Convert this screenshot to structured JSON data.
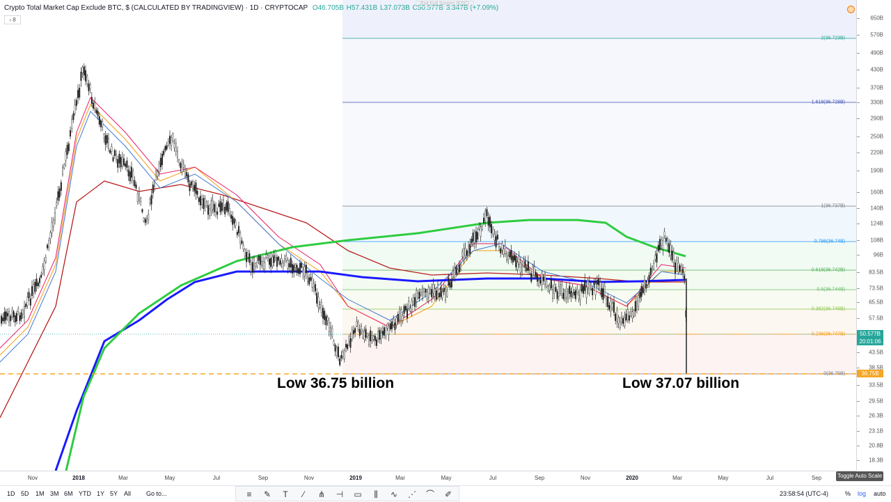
{
  "header": {
    "title": "Crypto Total Market Cap Exclude BTC, $ (CALCULATED BY TRADINGVIEW) · 1D · CRYPTOCAP",
    "open": "O46.705B",
    "high": "H57.431B",
    "low": "L37.073B",
    "close": "C50.577B",
    "change": "3.347B (+7.09%)",
    "collapse_label": "› 8",
    "exit_fullscreen": "Exit Full Screen (ESC)"
  },
  "annotations": {
    "low_left": "Low 36.75 billion",
    "low_right": "Low 37.07 billion"
  },
  "price_axis": {
    "ticks": [
      "650B",
      "570B",
      "490B",
      "430B",
      "370B",
      "330B",
      "290B",
      "250B",
      "220B",
      "190B",
      "160B",
      "140B",
      "124B",
      "108B",
      "96B",
      "83.5B",
      "73.5B",
      "65.5B",
      "57.5B",
      "43.5B",
      "38.5B",
      "33.5B",
      "29.5B",
      "26.3B",
      "23.1B",
      "20.8B",
      "18.3B"
    ],
    "last_price": "50.577B",
    "countdown": "20:01:06",
    "low_badge": "36.75B"
  },
  "time_axis": {
    "labels": [
      "Nov",
      "2018",
      "Mar",
      "May",
      "Jul",
      "Sep",
      "Nov",
      "2019",
      "Mar",
      "May",
      "Jul",
      "Sep",
      "Nov",
      "2020",
      "Mar",
      "May",
      "Jul",
      "Sep"
    ],
    "bold": [
      "2018",
      "2019",
      "2020"
    ]
  },
  "fib_levels": [
    {
      "label": "2(36.723B)",
      "color": "#26a69a"
    },
    {
      "label": "1.618(36.728B)",
      "color": "#3f51b5"
    },
    {
      "label": "1(36.737B)",
      "color": "#787b86"
    },
    {
      "label": "0.786(36.74B)",
      "color": "#2196f3"
    },
    {
      "label": "0.618(36.742B)",
      "color": "#4caf50"
    },
    {
      "label": "0.5(36.744B)",
      "color": "#66bb6a"
    },
    {
      "label": "0.382(36.745B)",
      "color": "#8bc34a"
    },
    {
      "label": "0.236(36.747B)",
      "color": "#ff9800"
    },
    {
      "label": "0(36.75B)",
      "color": "#787b86"
    }
  ],
  "bottom_bar": {
    "ranges": [
      "1D",
      "5D",
      "1M",
      "3M",
      "6M",
      "YTD",
      "1Y",
      "5Y",
      "All"
    ],
    "goto": "Go to...",
    "clock": "23:58:54 (UTC-4)",
    "percent": "%",
    "log": "log",
    "auto": "auto",
    "toggle_tooltip": "Toggle Auto Scale"
  },
  "tools": [
    "horizontal-lines-icon",
    "pencil-icon",
    "text-icon",
    "trendline-icon",
    "fork-icon",
    "horizontal-ray-icon",
    "rectangle-icon",
    "bars-icon",
    "wave-icon",
    "fan-icon",
    "curve-icon",
    "brush-icon"
  ],
  "colors": {
    "up": "#26a69a",
    "ma200_green": "#2ecc40",
    "ma_blue": "#1a1aff",
    "ma_darkred": "#b71c1c",
    "low_line": "#f5a623"
  },
  "chart_data": {
    "type": "candlestick",
    "scale": "log",
    "x": [
      "2017-11",
      "2018-01",
      "2018-03",
      "2018-05",
      "2018-07",
      "2018-09",
      "2018-11",
      "2019-01",
      "2019-03",
      "2019-05",
      "2019-07",
      "2019-09",
      "2019-11",
      "2020-01",
      "2020-03"
    ],
    "close_billion": [
      45,
      420,
      200,
      240,
      140,
      95,
      50,
      48,
      58,
      85,
      120,
      75,
      65,
      68,
      50.577
    ],
    "low_billion_marked": [
      36.75,
      37.07
    ],
    "ylim_billion": [
      18.3,
      650
    ]
  }
}
